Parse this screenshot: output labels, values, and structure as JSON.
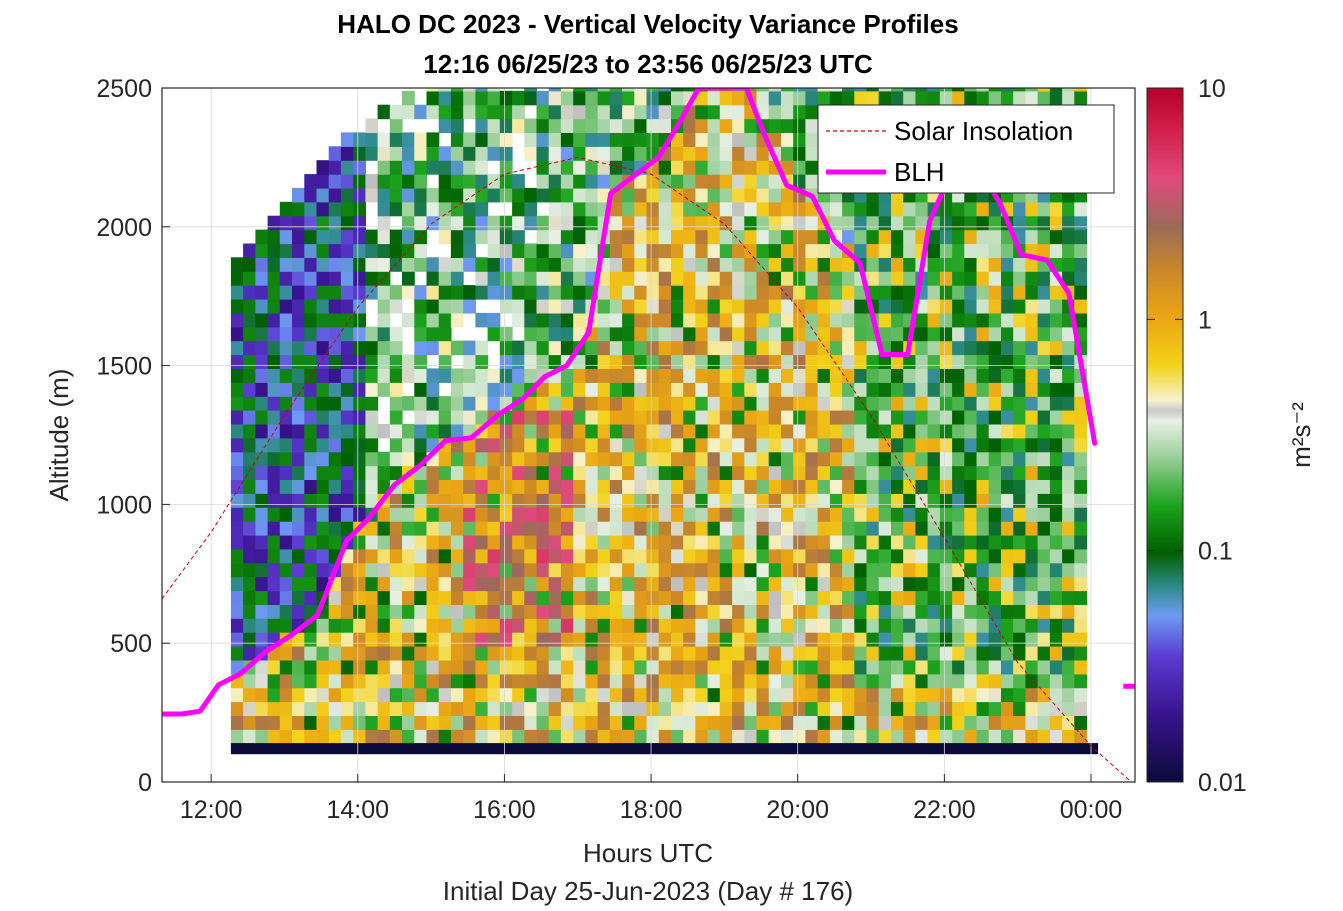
{
  "chart_data": {
    "type": "heatmap",
    "title": "HALO DC 2023 - Vertical Velocity Variance Profiles",
    "subtitle": "12:16 06/25/23 to 23:56 06/25/23  UTC",
    "xlabel": "Hours UTC",
    "xlabel2": "Initial Day 25-Jun-2023 (Day # 176)",
    "ylabel": "Altitude (m)",
    "colorbar_label": "m²s⁻²",
    "colorbar_scale": "log",
    "colorbar_range": [
      0.01,
      10
    ],
    "colorbar_ticks": [
      "0.01",
      "0.1",
      "1",
      "10"
    ],
    "colormap": [
      "#0b0b3a",
      "#4b1fa0",
      "#6e8ef0",
      "#2a8a8a",
      "#006400",
      "#1e9e1e",
      "#f5f5e8",
      "#f2c500",
      "#e39a12",
      "#a0705a",
      "#e04a7a",
      "#b8002a"
    ],
    "xlim_hours": [
      11.33,
      24.6
    ],
    "ylim": [
      0,
      2500
    ],
    "x_ticks": [
      "12:00",
      "14:00",
      "16:00",
      "18:00",
      "20:00",
      "22:00",
      "00:00"
    ],
    "y_ticks": [
      "0",
      "500",
      "1000",
      "1500",
      "2000",
      "2500"
    ],
    "grid": true,
    "legend_position": "top-right",
    "legend": [
      "Solar Insolation",
      "BLH"
    ],
    "series_colors": {
      "solar": "#cc0000",
      "blh": "#ff00ff"
    },
    "heatmap": {
      "time_start_hours": 12.27,
      "time_end_hours": 23.93,
      "time_step_hours": 0.1667,
      "alt_bottom_m": 100,
      "alt_step_m": 50,
      "profiles": [
        {
          "hour": 12.27,
          "top_m": 1850,
          "profile": "stable"
        },
        {
          "hour": 12.6,
          "top_m": 1950,
          "profile": "stable"
        },
        {
          "hour": 13.0,
          "top_m": 2100,
          "profile": "stable"
        },
        {
          "hour": 13.5,
          "top_m": 2250,
          "profile": "stable"
        },
        {
          "hour": 14.0,
          "top_m": 2350,
          "profile": "mixing"
        },
        {
          "hour": 15.0,
          "top_m": 2500,
          "profile": "mixing"
        },
        {
          "hour": 16.5,
          "top_m": 2500,
          "profile": "strong"
        },
        {
          "hour": 18.0,
          "top_m": 2500,
          "profile": "strong"
        },
        {
          "hour": 20.0,
          "top_m": 2500,
          "profile": "strong"
        },
        {
          "hour": 21.0,
          "top_m": 2500,
          "profile": "decaying"
        },
        {
          "hour": 23.93,
          "top_m": 2500,
          "profile": "decaying"
        }
      ],
      "near_surface_band": {
        "alt_range_m": [
          100,
          140
        ],
        "value": 0.01
      }
    },
    "series": [
      {
        "name": "Solar Insolation",
        "style": "dashed",
        "points": [
          {
            "hour": 11.33,
            "alt_m": 660
          },
          {
            "hour": 12.0,
            "alt_m": 900
          },
          {
            "hour": 13.0,
            "alt_m": 1320
          },
          {
            "hour": 14.0,
            "alt_m": 1710
          },
          {
            "hour": 15.0,
            "alt_m": 2010
          },
          {
            "hour": 16.0,
            "alt_m": 2190
          },
          {
            "hour": 17.0,
            "alt_m": 2250
          },
          {
            "hour": 18.0,
            "alt_m": 2190
          },
          {
            "hour": 19.0,
            "alt_m": 2010
          },
          {
            "hour": 20.0,
            "alt_m": 1710
          },
          {
            "hour": 21.0,
            "alt_m": 1320
          },
          {
            "hour": 22.0,
            "alt_m": 880
          },
          {
            "hour": 23.0,
            "alt_m": 430
          },
          {
            "hour": 24.0,
            "alt_m": 130
          },
          {
            "hour": 24.55,
            "alt_m": 0
          }
        ]
      },
      {
        "name": "BLH",
        "style": "solid",
        "points": [
          {
            "hour": 11.33,
            "alt_m": 245
          },
          {
            "hour": 11.6,
            "alt_m": 245
          },
          {
            "hour": 11.85,
            "alt_m": 255
          },
          {
            "hour": 12.1,
            "alt_m": 350
          },
          {
            "hour": 12.4,
            "alt_m": 390
          },
          {
            "hour": 12.75,
            "alt_m": 470
          },
          {
            "hour": 13.1,
            "alt_m": 530
          },
          {
            "hour": 13.45,
            "alt_m": 600
          },
          {
            "hour": 13.85,
            "alt_m": 870
          },
          {
            "hour": 14.15,
            "alt_m": 950
          },
          {
            "hour": 14.5,
            "alt_m": 1070
          },
          {
            "hour": 14.85,
            "alt_m": 1140
          },
          {
            "hour": 15.2,
            "alt_m": 1230
          },
          {
            "hour": 15.55,
            "alt_m": 1240
          },
          {
            "hour": 15.9,
            "alt_m": 1320
          },
          {
            "hour": 16.25,
            "alt_m": 1380
          },
          {
            "hour": 16.55,
            "alt_m": 1460
          },
          {
            "hour": 16.85,
            "alt_m": 1500
          },
          {
            "hour": 17.15,
            "alt_m": 1620
          },
          {
            "hour": 17.45,
            "alt_m": 2120
          },
          {
            "hour": 17.8,
            "alt_m": 2190
          },
          {
            "hour": 18.1,
            "alt_m": 2250
          },
          {
            "hour": 18.4,
            "alt_m": 2380
          },
          {
            "hour": 18.65,
            "alt_m": 2500
          },
          {
            "hour": 19.3,
            "alt_m": 2500
          },
          {
            "hour": 19.55,
            "alt_m": 2330
          },
          {
            "hour": 19.85,
            "alt_m": 2150
          },
          {
            "hour": 20.2,
            "alt_m": 2110
          },
          {
            "hour": 20.5,
            "alt_m": 1950
          },
          {
            "hour": 20.85,
            "alt_m": 1870
          },
          {
            "hour": 21.15,
            "alt_m": 1540
          },
          {
            "hour": 21.5,
            "alt_m": 1540
          },
          {
            "hour": 21.8,
            "alt_m": 2020
          },
          {
            "hour": 22.1,
            "alt_m": 2200
          },
          {
            "hour": 22.4,
            "alt_m": 2230
          },
          {
            "hour": 22.75,
            "alt_m": 2090
          },
          {
            "hour": 23.05,
            "alt_m": 1900
          },
          {
            "hour": 23.4,
            "alt_m": 1880
          },
          {
            "hour": 23.7,
            "alt_m": 1760
          },
          {
            "hour": 24.05,
            "alt_m": 1220
          }
        ],
        "isolated_points": [
          {
            "hour": 24.55,
            "alt_m": 345
          }
        ]
      }
    ]
  }
}
